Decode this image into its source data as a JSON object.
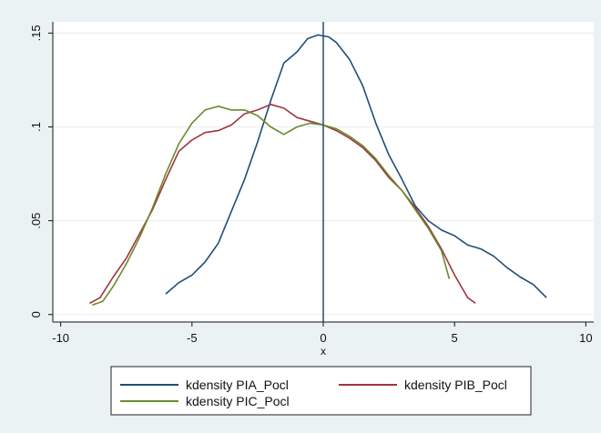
{
  "chart_data": {
    "type": "line",
    "title": "",
    "xlabel": "x",
    "ylabel": "",
    "xlim": [
      -10.3,
      10.3
    ],
    "ylim": [
      -0.004,
      0.156
    ],
    "x_ticks": [
      -10,
      -5,
      0,
      5,
      10
    ],
    "x_tick_labels": [
      "-10",
      "-5",
      "0",
      "5",
      "10"
    ],
    "y_ticks": [
      0,
      0.05,
      0.1,
      0.15
    ],
    "y_tick_labels": [
      "0",
      ".05",
      ".1",
      ".15"
    ],
    "grid": "horizontal",
    "reference_line_x": 0,
    "legend_position": "bottom",
    "series": [
      {
        "name": "kdensity PIA_Pocl",
        "color": "#1f4e79",
        "points": [
          [
            -6.0,
            0.011
          ],
          [
            -5.5,
            0.017
          ],
          [
            -5.0,
            0.021
          ],
          [
            -4.5,
            0.028
          ],
          [
            -4.0,
            0.038
          ],
          [
            -3.5,
            0.055
          ],
          [
            -3.0,
            0.072
          ],
          [
            -2.5,
            0.092
          ],
          [
            -2.0,
            0.114
          ],
          [
            -1.5,
            0.134
          ],
          [
            -1.0,
            0.14
          ],
          [
            -0.6,
            0.147
          ],
          [
            -0.2,
            0.149
          ],
          [
            0.2,
            0.148
          ],
          [
            0.5,
            0.145
          ],
          [
            1.0,
            0.136
          ],
          [
            1.5,
            0.122
          ],
          [
            2.0,
            0.102
          ],
          [
            2.5,
            0.085
          ],
          [
            3.0,
            0.072
          ],
          [
            3.5,
            0.058
          ],
          [
            4.0,
            0.05
          ],
          [
            4.5,
            0.045
          ],
          [
            5.0,
            0.042
          ],
          [
            5.5,
            0.037
          ],
          [
            6.0,
            0.035
          ],
          [
            6.5,
            0.031
          ],
          [
            7.0,
            0.025
          ],
          [
            7.5,
            0.02
          ],
          [
            8.0,
            0.016
          ],
          [
            8.5,
            0.009
          ]
        ]
      },
      {
        "name": "kdensity PIB_Pocl",
        "color": "#a0343f",
        "points": [
          [
            -8.9,
            0.006
          ],
          [
            -8.5,
            0.009
          ],
          [
            -8.0,
            0.02
          ],
          [
            -7.5,
            0.03
          ],
          [
            -7.0,
            0.043
          ],
          [
            -6.5,
            0.056
          ],
          [
            -6.0,
            0.072
          ],
          [
            -5.5,
            0.087
          ],
          [
            -5.0,
            0.093
          ],
          [
            -4.5,
            0.097
          ],
          [
            -4.0,
            0.098
          ],
          [
            -3.5,
            0.101
          ],
          [
            -3.0,
            0.107
          ],
          [
            -2.5,
            0.109
          ],
          [
            -2.0,
            0.112
          ],
          [
            -1.5,
            0.11
          ],
          [
            -1.0,
            0.105
          ],
          [
            -0.5,
            0.103
          ],
          [
            0.0,
            0.101
          ],
          [
            0.5,
            0.098
          ],
          [
            1.0,
            0.094
          ],
          [
            1.5,
            0.089
          ],
          [
            2.0,
            0.082
          ],
          [
            2.5,
            0.073
          ],
          [
            3.0,
            0.066
          ],
          [
            3.5,
            0.057
          ],
          [
            4.0,
            0.047
          ],
          [
            4.5,
            0.035
          ],
          [
            5.0,
            0.021
          ],
          [
            5.5,
            0.009
          ],
          [
            5.8,
            0.006
          ]
        ]
      },
      {
        "name": "kdensity PIC_Pocl",
        "color": "#6b8a2f",
        "points": [
          [
            -8.8,
            0.005
          ],
          [
            -8.4,
            0.007
          ],
          [
            -8.0,
            0.015
          ],
          [
            -7.5,
            0.027
          ],
          [
            -7.0,
            0.041
          ],
          [
            -6.5,
            0.057
          ],
          [
            -6.0,
            0.075
          ],
          [
            -5.5,
            0.091
          ],
          [
            -5.0,
            0.102
          ],
          [
            -4.5,
            0.109
          ],
          [
            -4.0,
            0.111
          ],
          [
            -3.5,
            0.109
          ],
          [
            -3.0,
            0.109
          ],
          [
            -2.5,
            0.106
          ],
          [
            -2.0,
            0.1
          ],
          [
            -1.5,
            0.096
          ],
          [
            -1.0,
            0.1
          ],
          [
            -0.5,
            0.102
          ],
          [
            0.0,
            0.101
          ],
          [
            0.5,
            0.099
          ],
          [
            1.0,
            0.095
          ],
          [
            1.5,
            0.09
          ],
          [
            2.0,
            0.083
          ],
          [
            2.5,
            0.074
          ],
          [
            3.0,
            0.066
          ],
          [
            3.5,
            0.056
          ],
          [
            4.0,
            0.046
          ],
          [
            4.5,
            0.034
          ],
          [
            4.8,
            0.019
          ]
        ]
      }
    ]
  }
}
